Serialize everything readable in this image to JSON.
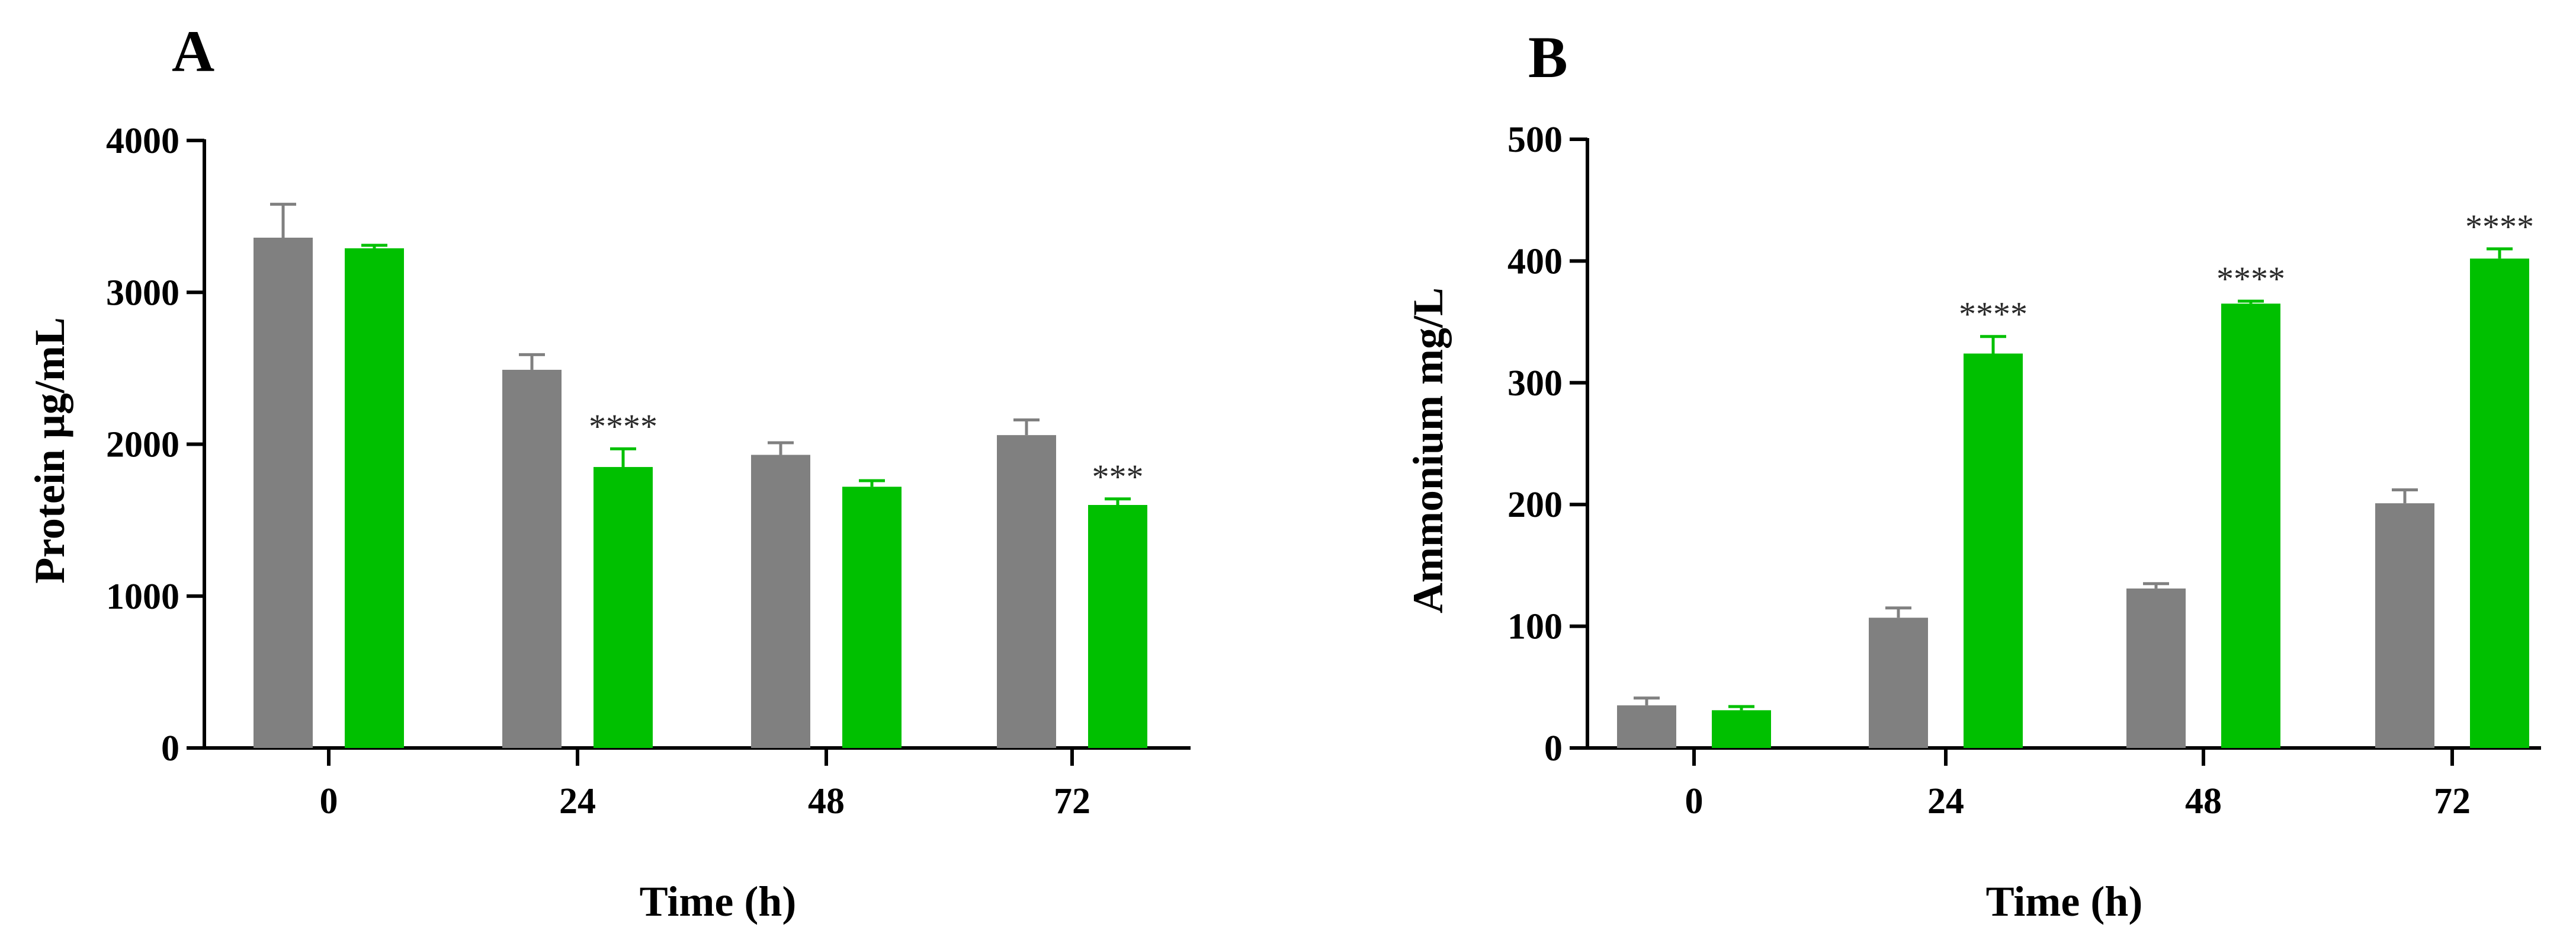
{
  "chart_data": [
    {
      "type": "bar",
      "panel_label": "A",
      "xlabel": "Time (h)",
      "ylabel": "Protein μg/mL",
      "categories": [
        "0",
        "24",
        "48",
        "72"
      ],
      "ylim": [
        0,
        4000
      ],
      "yticks": [
        "0",
        "1000",
        "2000",
        "3000",
        "4000"
      ],
      "grid": false,
      "series": [
        {
          "color": "#808080",
          "values": [
            3360,
            2490,
            1930,
            2060
          ],
          "errors": [
            220,
            100,
            80,
            100
          ]
        },
        {
          "color": "#00C000",
          "values": [
            3290,
            1850,
            1720,
            1600
          ],
          "errors": [
            20,
            120,
            40,
            40
          ]
        }
      ],
      "annotations": [
        {
          "category": "24",
          "series": 1,
          "text": "****"
        },
        {
          "category": "72",
          "series": 1,
          "text": "***"
        }
      ]
    },
    {
      "type": "bar",
      "panel_label": "B",
      "xlabel": "Time (h)",
      "ylabel": "Ammonium mg/L",
      "categories": [
        "0",
        "24",
        "48",
        "72"
      ],
      "ylim": [
        0,
        500
      ],
      "yticks": [
        "0",
        "100",
        "200",
        "300",
        "400",
        "500"
      ],
      "grid": false,
      "series": [
        {
          "color": "#808080",
          "values": [
            35,
            107,
            131,
            201
          ],
          "errors": [
            6,
            8,
            4,
            11
          ]
        },
        {
          "color": "#00C000",
          "values": [
            31,
            324,
            365,
            402
          ],
          "errors": [
            3,
            14,
            2,
            8
          ]
        }
      ],
      "annotations": [
        {
          "category": "24",
          "series": 1,
          "text": "****"
        },
        {
          "category": "48",
          "series": 1,
          "text": "****"
        },
        {
          "category": "72",
          "series": 1,
          "text": "****"
        }
      ]
    }
  ]
}
